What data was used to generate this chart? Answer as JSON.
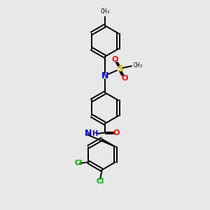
{
  "background_color": "#e8e8e8",
  "bond_color": "#000000",
  "N_color": "#0000cd",
  "O_color": "#ff0000",
  "S_color": "#ccaa00",
  "Cl_color": "#00aa00",
  "figsize": [
    3.0,
    3.0
  ],
  "dpi": 100,
  "xlim": [
    0,
    10
  ],
  "ylim": [
    0,
    10
  ]
}
